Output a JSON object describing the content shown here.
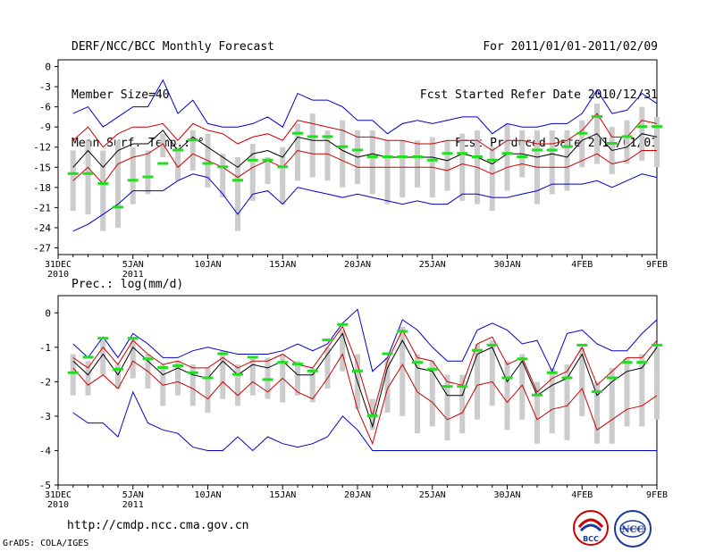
{
  "header": {
    "title": "DERF/NCC/BCC Monthly Forecast",
    "member_size": "Member Size=40",
    "variable": "Mean Surf. Temp.: °C",
    "forecast_period": "For 2011/01/01-2011/02/09",
    "start_date": "Fcst Started Refer Date 2010/12/31",
    "produced_date": "Fcst Produced Date 2011/01/01"
  },
  "footer": {
    "url": "http://cmdp.ncc.cma.gov.cn",
    "credit": "GrADS: COLA/IGES",
    "logo_bcc": "BCC",
    "logo_ncc": "NCC"
  },
  "colors": {
    "envelope": "#0000cc",
    "spread": "#cc0000",
    "mean": "#000000",
    "observed": "#22dd22",
    "box": "#cccccc"
  },
  "chart_data": [
    {
      "type": "box-ensemble",
      "title": "Mean Surf. Temp.: °C",
      "ylim": [
        -28,
        1
      ],
      "yticks": [
        0,
        -3,
        -6,
        -9,
        -12,
        -15,
        -18,
        -21,
        -24,
        -27
      ],
      "xticks": [
        {
          "day": 0,
          "label": "31DEC",
          "sub": "2010"
        },
        {
          "day": 5,
          "label": "5JAN",
          "sub": "2011"
        },
        {
          "day": 10,
          "label": "10JAN",
          "sub": ""
        },
        {
          "day": 15,
          "label": "15JAN",
          "sub": ""
        },
        {
          "day": 20,
          "label": "20JAN",
          "sub": ""
        },
        {
          "day": 25,
          "label": "25JAN",
          "sub": ""
        },
        {
          "day": 30,
          "label": "30JAN",
          "sub": ""
        },
        {
          "day": 35,
          "label": "4FEB",
          "sub": ""
        },
        {
          "day": 40,
          "label": "9FEB",
          "sub": ""
        }
      ],
      "days": [
        1,
        2,
        3,
        4,
        5,
        6,
        7,
        8,
        9,
        10,
        11,
        12,
        13,
        14,
        15,
        16,
        17,
        18,
        19,
        20,
        21,
        22,
        23,
        24,
        25,
        26,
        27,
        28,
        29,
        30,
        31,
        32,
        33,
        34,
        35,
        36,
        37,
        38,
        39,
        40
      ],
      "max": [
        -7,
        -6,
        -9,
        -7.5,
        -6,
        -6,
        -2,
        -7,
        -5,
        -8.5,
        -9,
        -9,
        -8.5,
        -7.5,
        -9,
        -4,
        -5,
        -5,
        -6,
        -8,
        -8,
        -10,
        -8.5,
        -8,
        -8.5,
        -8,
        -7.5,
        -7.5,
        -10,
        -8.5,
        -9,
        -9,
        -8.5,
        -8.5,
        -7,
        -3.5,
        -7,
        -6.5,
        -4,
        -5.5
      ],
      "upper": [
        -11,
        -9,
        -12,
        -10,
        -9,
        -9,
        -8.5,
        -11,
        -8.5,
        -9.5,
        -10,
        -11.5,
        -10.5,
        -10,
        -11,
        -8,
        -8.5,
        -9,
        -9.5,
        -10.5,
        -10.5,
        -11,
        -11,
        -11.5,
        -11.5,
        -11,
        -11,
        -11,
        -12.5,
        -11,
        -11,
        -11.5,
        -11.5,
        -11,
        -9.5,
        -7,
        -10.5,
        -10.5,
        -8,
        -8.5
      ],
      "mean": [
        -15,
        -12.5,
        -15,
        -12.5,
        -11.5,
        -11.5,
        -9.5,
        -12.5,
        -10.5,
        -12,
        -13.5,
        -15,
        -13,
        -12.5,
        -13.5,
        -10.5,
        -11,
        -11,
        -12.5,
        -13.5,
        -13,
        -13.5,
        -13.5,
        -13.5,
        -13.5,
        -14,
        -13,
        -13.5,
        -14.5,
        -13,
        -13,
        -13.5,
        -13,
        -13.5,
        -11,
        -10,
        -12.5,
        -12,
        -10,
        -10.5
      ],
      "lower": [
        -17,
        -15,
        -17.5,
        -14.5,
        -13.5,
        -13,
        -11.5,
        -15,
        -13,
        -14,
        -15,
        -16.5,
        -15,
        -14,
        -15,
        -12.5,
        -13,
        -13,
        -14,
        -15,
        -15,
        -15,
        -15,
        -15,
        -15,
        -15.5,
        -14.5,
        -15,
        -16,
        -15,
        -14.5,
        -15,
        -15,
        -15,
        -14,
        -13,
        -14.5,
        -14,
        -12.5,
        -12.5
      ],
      "min": [
        -24.5,
        -23.5,
        -22,
        -20.5,
        -18.5,
        -18.5,
        -18.5,
        -17,
        -16,
        -16.5,
        -19,
        -22,
        -19,
        -18.5,
        -20.5,
        -18,
        -18.5,
        -19,
        -19.5,
        -19,
        -19.5,
        -20,
        -20.5,
        -20,
        -20.5,
        -20.5,
        -19,
        -19,
        -19.5,
        -19.5,
        -19,
        -18.5,
        -17.5,
        -17.5,
        -17.5,
        -17,
        -18,
        -17,
        -16,
        -16.5
      ],
      "box_high": [
        -12.5,
        -11,
        -12.5,
        -11,
        -12,
        -12.5,
        -10,
        -12,
        -9.5,
        -10,
        -13,
        -13.5,
        -11.5,
        -13.5,
        -12,
        -8.5,
        -7,
        -9.5,
        -8,
        -9.5,
        -9.5,
        -11,
        -11,
        -11,
        -10.5,
        -11,
        -10,
        -9.5,
        -12,
        -8.5,
        -9.5,
        -9.5,
        -9.5,
        -9.5,
        -8,
        -5.5,
        -9,
        -8,
        -6,
        -7.5
      ],
      "box_low": [
        -21.5,
        -22,
        -24.5,
        -24,
        -20.5,
        -19,
        -13.5,
        -17,
        -15.5,
        -18,
        -19.5,
        -24.5,
        -20,
        -17.5,
        -20.5,
        -17,
        -16.5,
        -17,
        -18,
        -17.5,
        -19,
        -20.5,
        -19.5,
        -18,
        -19.5,
        -18.5,
        -20,
        -20.5,
        -21.5,
        -18.5,
        -16.5,
        -20.5,
        -19,
        -18.5,
        -15,
        -14.5,
        -16,
        -14.5,
        -14,
        -15
      ],
      "observed": [
        -16,
        -16,
        -17.5,
        -21,
        -17,
        -16.5,
        -14.5,
        -12.5,
        -11,
        -14.5,
        -15,
        -17,
        -14,
        -14,
        -15,
        -10,
        -10.5,
        -10.5,
        -12,
        -12.5,
        -13.5,
        -13.5,
        -13.5,
        -13.5,
        -14,
        -13,
        -13,
        -13.5,
        -14,
        -13,
        -13.5,
        -12.5,
        -12.5,
        -12,
        -10,
        -7.5,
        -11.5,
        -10.5,
        -9,
        -9
      ]
    },
    {
      "type": "box-ensemble",
      "title": "Prec.: log(mm/d)",
      "ylim": [
        -5,
        0.5
      ],
      "yticks": [
        0,
        -1,
        -2,
        -3,
        -4,
        -5
      ],
      "xticks": [
        {
          "day": 0,
          "label": "31DEC",
          "sub": "2010"
        },
        {
          "day": 5,
          "label": "5JAN",
          "sub": "2011"
        },
        {
          "day": 10,
          "label": "10JAN",
          "sub": ""
        },
        {
          "day": 15,
          "label": "15JAN",
          "sub": ""
        },
        {
          "day": 20,
          "label": "20JAN",
          "sub": ""
        },
        {
          "day": 25,
          "label": "25JAN",
          "sub": ""
        },
        {
          "day": 30,
          "label": "30JAN",
          "sub": ""
        },
        {
          "day": 35,
          "label": "4FEB",
          "sub": ""
        },
        {
          "day": 40,
          "label": "9FEB",
          "sub": ""
        }
      ],
      "days": [
        1,
        2,
        3,
        4,
        5,
        6,
        7,
        8,
        9,
        10,
        11,
        12,
        13,
        14,
        15,
        16,
        17,
        18,
        19,
        20,
        21,
        22,
        23,
        24,
        25,
        26,
        27,
        28,
        29,
        30,
        31,
        32,
        33,
        34,
        35,
        36,
        37,
        38,
        39,
        40
      ],
      "max": [
        -0.9,
        -1.3,
        -0.7,
        -1.3,
        -0.6,
        -0.9,
        -1.3,
        -1.3,
        -1.1,
        -1.0,
        -1.1,
        -1.2,
        -1.2,
        -1.2,
        -1.1,
        -0.9,
        -1.1,
        -0.9,
        -0.3,
        0.1,
        -1.7,
        -1.3,
        -0.2,
        -0.5,
        -1.0,
        -1.4,
        -1.4,
        -0.5,
        -0.3,
        -0.5,
        -0.9,
        -0.8,
        -1.7,
        -0.6,
        -0.5,
        -0.9,
        -1.1,
        -1.1,
        -0.6,
        -0.2
      ],
      "upper": [
        -1.3,
        -1.6,
        -1.0,
        -1.5,
        -0.8,
        -1.2,
        -1.5,
        -1.4,
        -1.6,
        -1.6,
        -1.3,
        -1.6,
        -1.4,
        -1.4,
        -1.2,
        -1.5,
        -1.6,
        -1.0,
        -0.4,
        -1.5,
        -3.0,
        -1.4,
        -0.5,
        -1.3,
        -1.4,
        -2.0,
        -2.1,
        -0.9,
        -0.7,
        -1.5,
        -1.3,
        -2.3,
        -1.9,
        -1.7,
        -1.0,
        -2.1,
        -1.7,
        -1.3,
        -1.3,
        -0.8
      ],
      "mean": [
        -1.4,
        -1.8,
        -1.2,
        -1.8,
        -1.0,
        -1.4,
        -1.8,
        -1.6,
        -1.8,
        -1.9,
        -1.4,
        -1.8,
        -1.5,
        -1.6,
        -1.4,
        -1.8,
        -1.8,
        -1.2,
        -0.6,
        -2.0,
        -3.3,
        -1.6,
        -0.8,
        -1.6,
        -1.7,
        -2.4,
        -2.4,
        -1.2,
        -1.0,
        -2.0,
        -1.4,
        -2.4,
        -2.1,
        -1.9,
        -1.2,
        -2.4,
        -2.0,
        -1.7,
        -1.6,
        -1.0
      ],
      "lower": [
        -1.6,
        -2.1,
        -1.8,
        -2.2,
        -1.4,
        -1.7,
        -2.1,
        -2.0,
        -2.2,
        -2.5,
        -2.0,
        -2.4,
        -2.0,
        -2.3,
        -1.9,
        -2.3,
        -2.5,
        -1.9,
        -1.2,
        -2.8,
        -3.8,
        -2.2,
        -1.5,
        -2.3,
        -2.6,
        -3.1,
        -2.9,
        -2.1,
        -2.0,
        -2.6,
        -2.1,
        -3.1,
        -2.8,
        -2.7,
        -2.2,
        -3.4,
        -3.1,
        -2.8,
        -2.7,
        -2.4
      ],
      "min": [
        -2.9,
        -3.2,
        -3.2,
        -3.6,
        -2.3,
        -3.2,
        -3.4,
        -3.5,
        -3.9,
        -4.0,
        -4.0,
        -3.6,
        -4.0,
        -3.6,
        -3.8,
        -3.9,
        -3.8,
        -3.6,
        -3.0,
        -3.4,
        -4.0,
        -4.0,
        -4.0,
        -4.0,
        -4.0,
        -4.0,
        -4.0,
        -4.0,
        -4.0,
        -4.0,
        -4.0,
        -4.0,
        -4.0,
        -4.0,
        -4.0,
        -4.0,
        -4.0,
        -4.0,
        -4.0,
        -4.0
      ],
      "box_high": [
        -1.2,
        -1.4,
        -0.8,
        -1.5,
        -0.7,
        -1.2,
        -1.5,
        -1.4,
        -1.5,
        -1.6,
        -1.1,
        -1.5,
        -1.3,
        -1.3,
        -1.2,
        -1.4,
        -1.6,
        -1.0,
        -0.5,
        -1.2,
        -2.5,
        -1.3,
        -0.4,
        -1.2,
        -1.4,
        -1.8,
        -1.8,
        -0.9,
        -0.8,
        -1.4,
        -1.2,
        -2.0,
        -1.6,
        -1.5,
        -1.0,
        -2.0,
        -1.6,
        -1.3,
        -1.2,
        -1.0
      ],
      "box_low": [
        -2.4,
        -2.4,
        -1.8,
        -2.2,
        -1.9,
        -2.2,
        -2.7,
        -2.4,
        -2.7,
        -2.9,
        -2.5,
        -2.7,
        -2.4,
        -2.5,
        -2.6,
        -2.4,
        -2.6,
        -2.2,
        -1.7,
        -2.8,
        -3.4,
        -2.9,
        -3.0,
        -3.5,
        -3.3,
        -3.7,
        -3.5,
        -3.1,
        -2.7,
        -3.4,
        -3.1,
        -3.8,
        -3.5,
        -3.7,
        -3.0,
        -3.8,
        -3.8,
        -3.3,
        -3.3,
        -3.1
      ],
      "observed": [
        -1.75,
        -1.3,
        -0.75,
        -1.65,
        -0.75,
        -1.35,
        -1.6,
        -1.55,
        -1.75,
        -1.9,
        -1.2,
        -1.8,
        -1.3,
        -1.95,
        -1.45,
        -1.5,
        -1.7,
        -0.8,
        -0.35,
        -1.7,
        -3.0,
        -1.2,
        -0.55,
        -1.45,
        -1.65,
        -2.15,
        -2.15,
        -1.1,
        -0.95,
        -1.9,
        -1.35,
        -2.4,
        -1.75,
        -1.9,
        -0.95,
        -2.3,
        -1.9,
        -1.45,
        -1.45,
        -0.95
      ]
    }
  ]
}
